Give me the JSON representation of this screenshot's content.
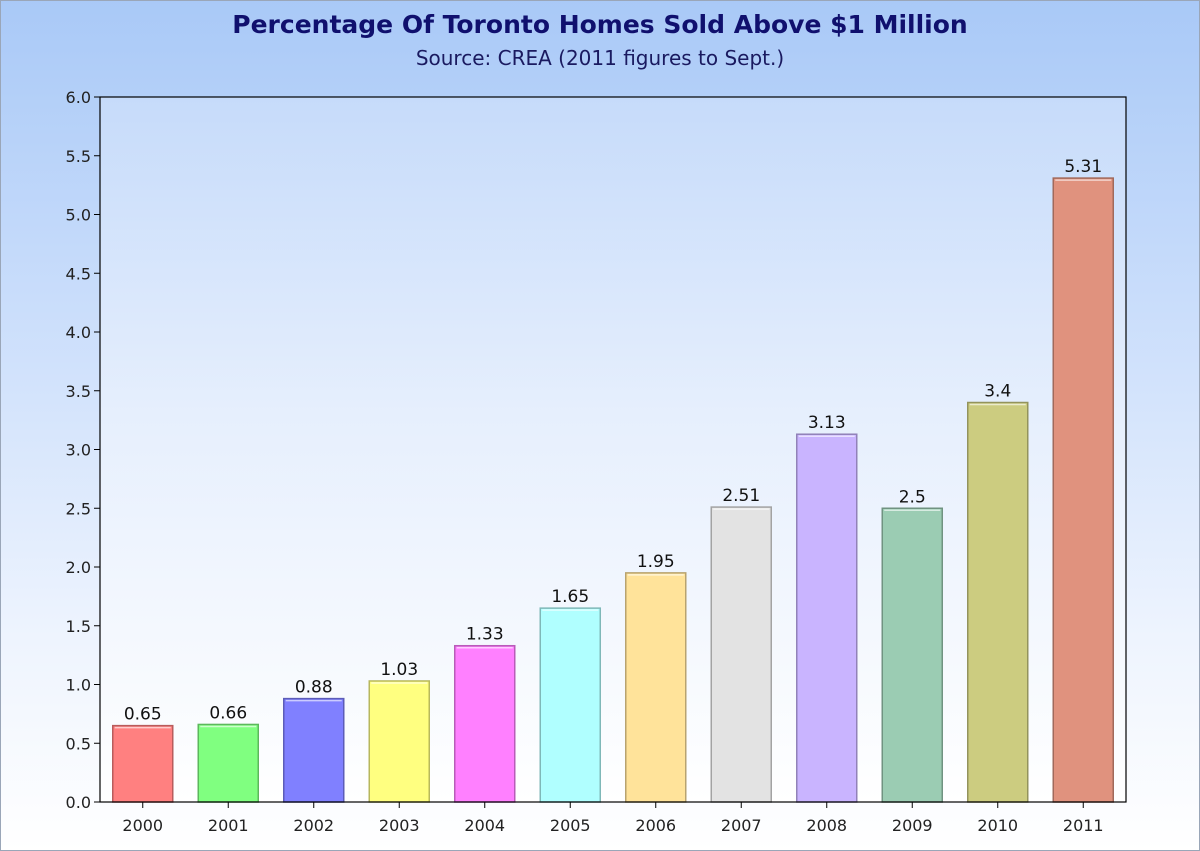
{
  "chart_data": {
    "type": "bar",
    "title": "Percentage Of Toronto Homes Sold Above $1 Million",
    "subtitle": "Source: CREA (2011 figures to Sept.)",
    "xlabel": "",
    "ylabel": "",
    "categories": [
      "2000",
      "2001",
      "2002",
      "2003",
      "2004",
      "2005",
      "2006",
      "2007",
      "2008",
      "2009",
      "2010",
      "2011"
    ],
    "values": [
      0.65,
      0.66,
      0.88,
      1.03,
      1.33,
      1.65,
      1.95,
      2.51,
      3.13,
      2.5,
      3.4,
      5.31
    ],
    "data_labels": [
      "0.65",
      "0.66",
      "0.88",
      "1.03",
      "1.33",
      "1.65",
      "1.95",
      "2.51",
      "3.13",
      "2.5",
      "3.4",
      "5.31"
    ],
    "colors": [
      "#ff8080",
      "#80ff80",
      "#8080ff",
      "#ffff80",
      "#ff80ff",
      "#b0ffff",
      "#ffe39a",
      "#e3e3e3",
      "#c9b4ff",
      "#9bccb3",
      "#cccc80",
      "#e0927e"
    ],
    "ylim": [
      0,
      6
    ],
    "yticks": [
      "0.0",
      "0.5",
      "1.0",
      "1.5",
      "2.0",
      "2.5",
      "3.0",
      "3.5",
      "4.0",
      "4.5",
      "5.0",
      "5.5",
      "6.0"
    ],
    "grid": false,
    "legend": "none"
  }
}
